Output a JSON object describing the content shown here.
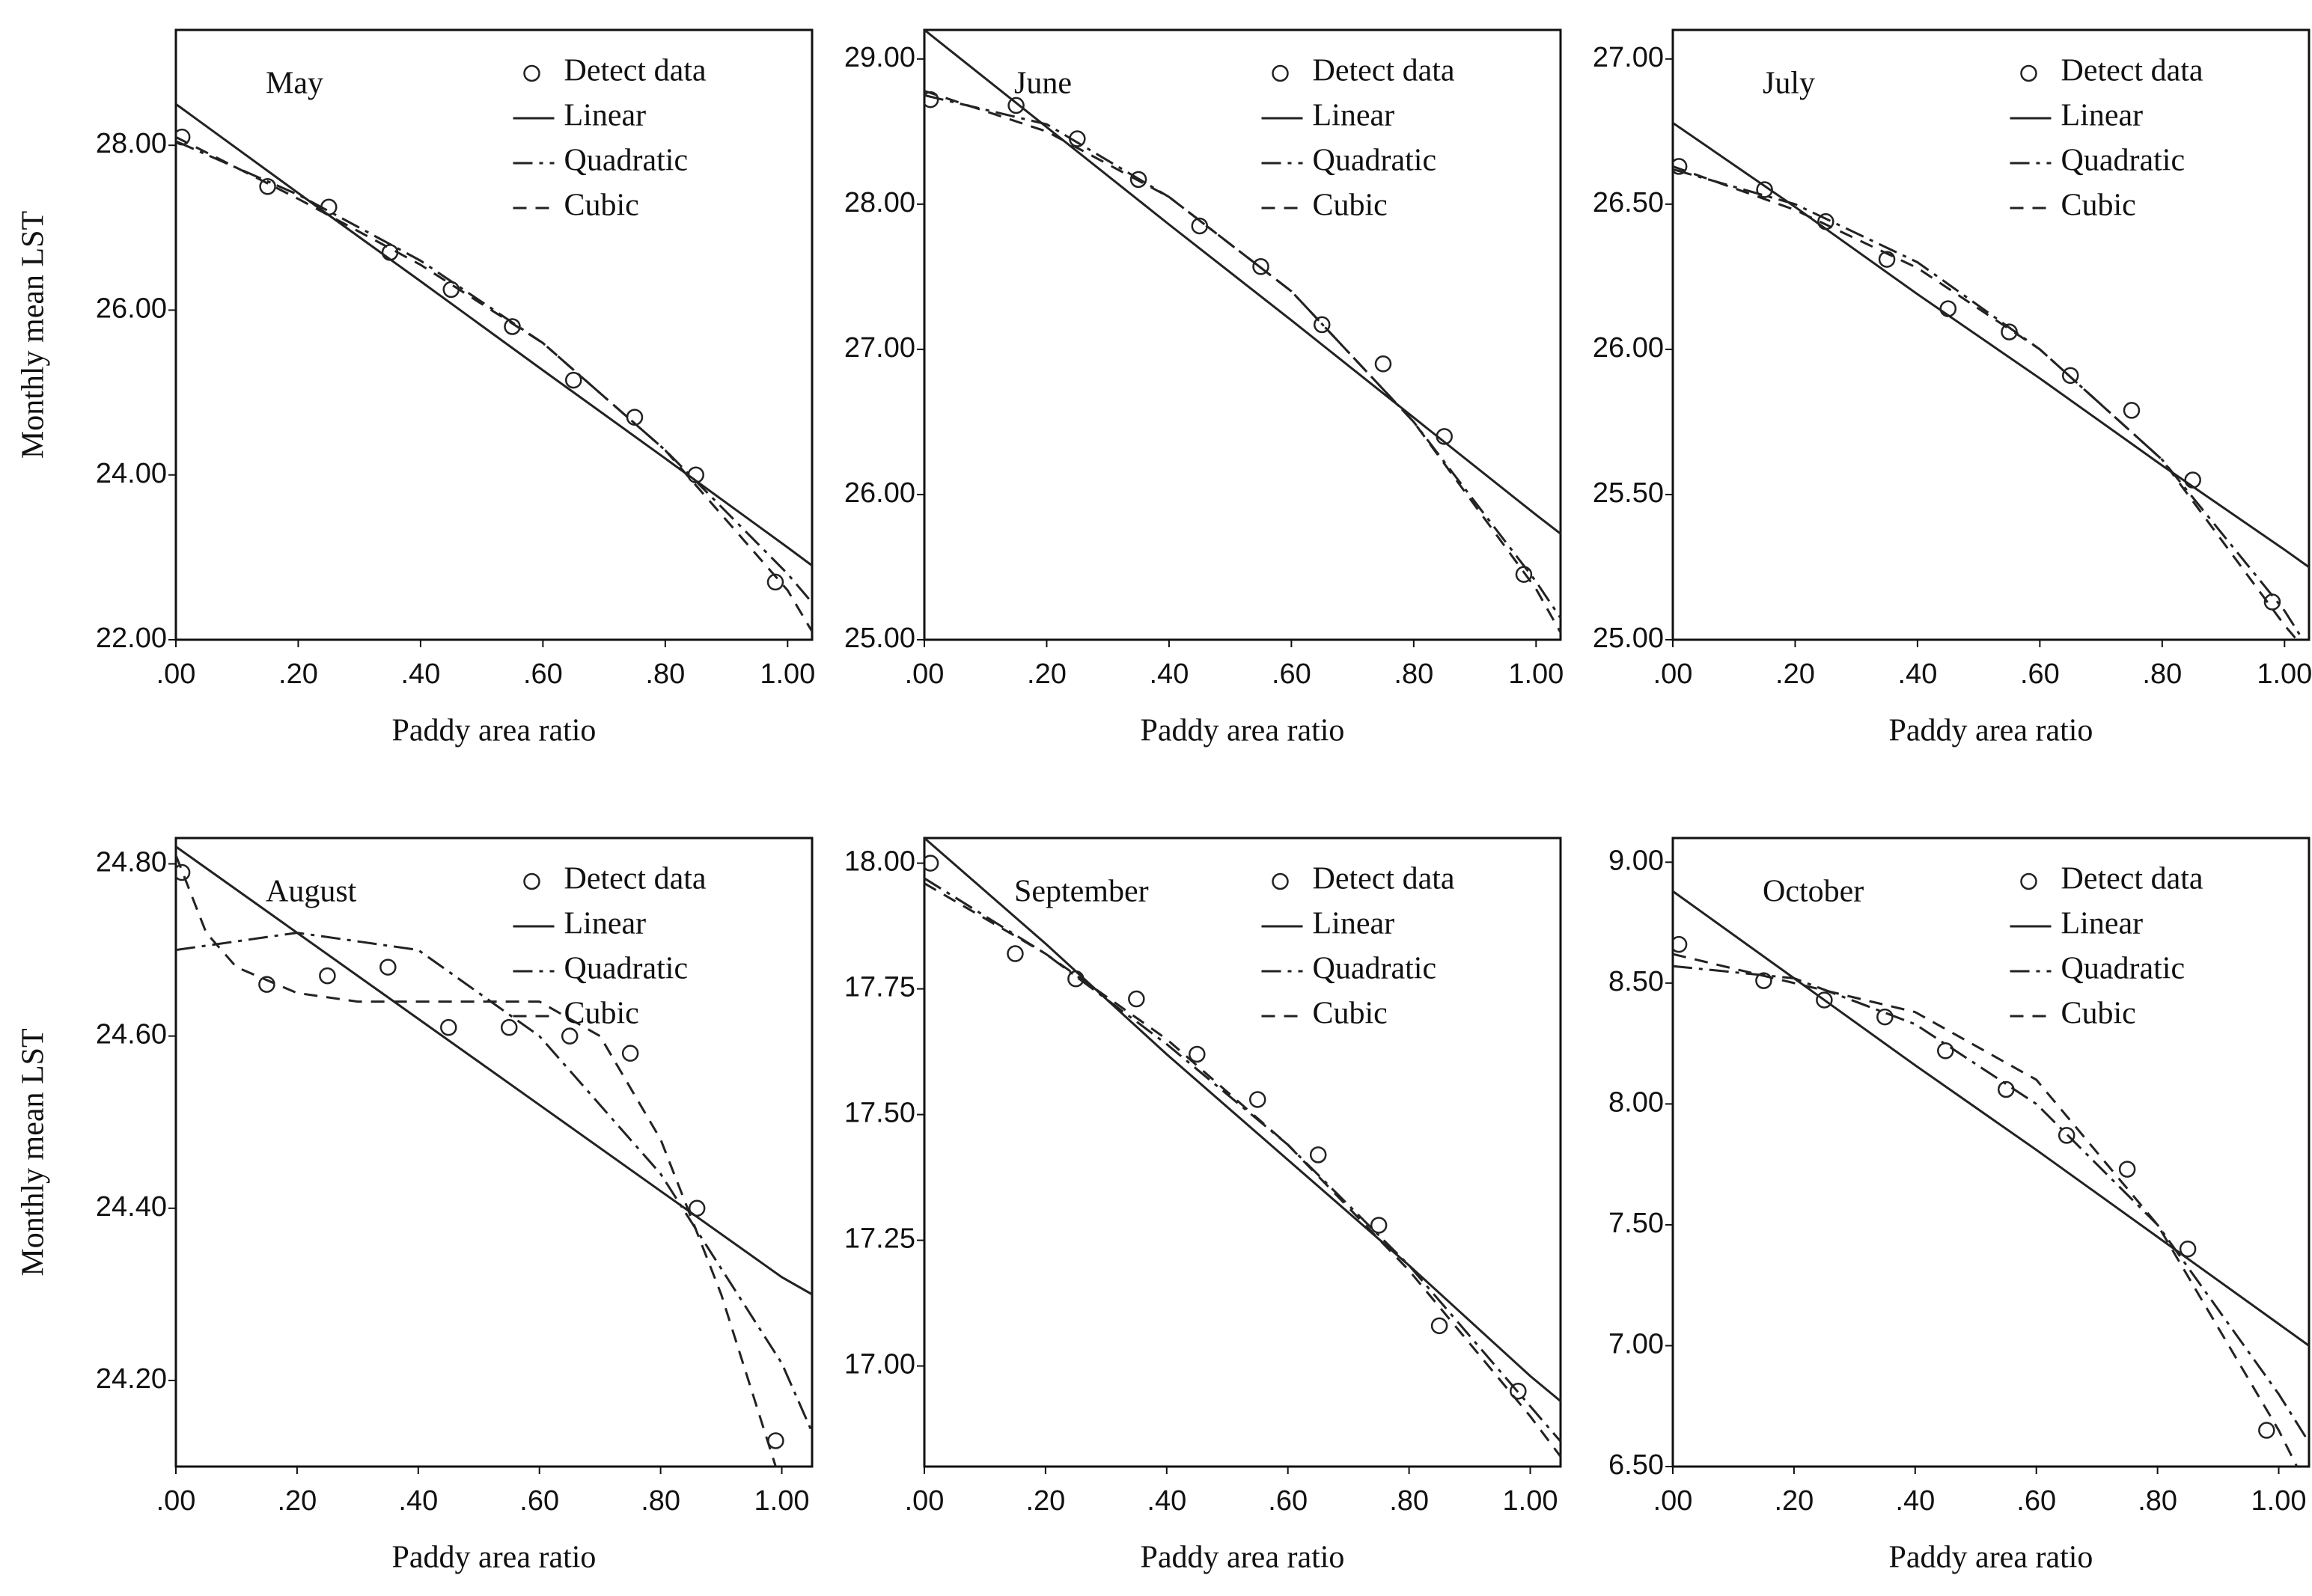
{
  "chart_data": [
    {
      "type": "scatter",
      "title": "May",
      "xlabel": "Paddy area ratio",
      "ylabel": "Monthly mean LST",
      "xlim": [
        0,
        1.04
      ],
      "ylim": [
        22,
        29.4
      ],
      "xticks": [
        {
          "value": 0,
          "label": ".00"
        },
        {
          "value": 0.2,
          "label": ".20"
        },
        {
          "value": 0.4,
          "label": ".40"
        },
        {
          "value": 0.6,
          "label": ".60"
        },
        {
          "value": 0.8,
          "label": ".80"
        },
        {
          "value": 1,
          "label": "1.00"
        }
      ],
      "yticks": [
        {
          "value": 22,
          "label": "22.00"
        },
        {
          "value": 24,
          "label": "24.00"
        },
        {
          "value": 26,
          "label": "26.00"
        },
        {
          "value": 28,
          "label": "28.00"
        }
      ],
      "series": [
        {
          "name": "Detect data",
          "color": "#222222",
          "x": [
            0.01,
            0.15,
            0.25,
            0.35,
            0.45,
            0.55,
            0.65,
            0.75,
            0.85,
            0.98
          ],
          "values": [
            28.1,
            27.5,
            27.25,
            26.7,
            26.25,
            25.8,
            25.15,
            24.7,
            24.0,
            22.7
          ]
        },
        {
          "name": "Linear",
          "color": "#222222",
          "x": [
            0,
            0.2,
            0.4,
            0.6,
            0.8,
            1.0,
            1.04
          ],
          "values": [
            28.5,
            27.42,
            26.35,
            25.27,
            24.2,
            23.12,
            22.9
          ]
        },
        {
          "name": "Quadratic",
          "color": "#222222",
          "x": [
            0,
            0.2,
            0.4,
            0.6,
            0.8,
            1.0,
            1.04
          ],
          "values": [
            28.05,
            27.4,
            26.6,
            25.6,
            24.3,
            22.8,
            22.45
          ]
        },
        {
          "name": "Cubic",
          "color": "#222222",
          "x": [
            0,
            0.2,
            0.4,
            0.6,
            0.8,
            1.0,
            1.04
          ],
          "values": [
            28.1,
            27.35,
            26.55,
            25.6,
            24.3,
            22.6,
            22.1
          ]
        }
      ]
    },
    {
      "type": "scatter",
      "title": "June",
      "xlabel": "Paddy area ratio",
      "xlim": [
        0,
        1.04
      ],
      "ylim": [
        25,
        29.2
      ],
      "xticks": [
        {
          "value": 0,
          "label": ".00"
        },
        {
          "value": 0.2,
          "label": ".20"
        },
        {
          "value": 0.4,
          "label": ".40"
        },
        {
          "value": 0.6,
          "label": ".60"
        },
        {
          "value": 0.8,
          "label": ".80"
        },
        {
          "value": 1,
          "label": "1.00"
        }
      ],
      "yticks": [
        {
          "value": 25,
          "label": "25.00"
        },
        {
          "value": 26,
          "label": "26.00"
        },
        {
          "value": 27,
          "label": "27.00"
        },
        {
          "value": 28,
          "label": "28.00"
        },
        {
          "value": 29,
          "label": "29.00"
        }
      ],
      "series": [
        {
          "name": "Detect data",
          "color": "#222222",
          "x": [
            0.01,
            0.15,
            0.25,
            0.35,
            0.45,
            0.55,
            0.65,
            0.75,
            0.85,
            0.98
          ],
          "values": [
            28.72,
            28.68,
            28.45,
            28.17,
            27.85,
            27.57,
            27.17,
            26.9,
            26.4,
            25.45
          ]
        },
        {
          "name": "Linear",
          "color": "#222222",
          "x": [
            0,
            0.2,
            0.4,
            0.6,
            0.8,
            1.0,
            1.04
          ],
          "values": [
            29.2,
            28.53,
            27.86,
            27.2,
            26.53,
            25.86,
            25.73
          ]
        },
        {
          "name": "Quadratic",
          "color": "#222222",
          "x": [
            0,
            0.2,
            0.4,
            0.6,
            0.8,
            1.0,
            1.04
          ],
          "values": [
            28.75,
            28.55,
            28.05,
            27.4,
            26.5,
            25.4,
            25.15
          ]
        },
        {
          "name": "Cubic",
          "color": "#222222",
          "x": [
            0,
            0.2,
            0.4,
            0.6,
            0.8,
            1.0,
            1.04
          ],
          "values": [
            28.78,
            28.5,
            28.05,
            27.4,
            26.5,
            25.35,
            25.05
          ]
        }
      ]
    },
    {
      "type": "scatter",
      "title": "July",
      "xlabel": "Paddy area ratio",
      "xlim": [
        0,
        1.04
      ],
      "ylim": [
        25,
        27.1
      ],
      "xticks": [
        {
          "value": 0,
          "label": ".00"
        },
        {
          "value": 0.2,
          "label": ".20"
        },
        {
          "value": 0.4,
          "label": ".40"
        },
        {
          "value": 0.6,
          "label": ".60"
        },
        {
          "value": 0.8,
          "label": ".80"
        },
        {
          "value": 1,
          "label": "1.00"
        }
      ],
      "yticks": [
        {
          "value": 25,
          "label": "25.00"
        },
        {
          "value": 25.5,
          "label": "25.50"
        },
        {
          "value": 26,
          "label": "26.00"
        },
        {
          "value": 26.5,
          "label": "26.50"
        },
        {
          "value": 27,
          "label": "27.00"
        }
      ],
      "series": [
        {
          "name": "Detect data",
          "color": "#222222",
          "x": [
            0.01,
            0.15,
            0.25,
            0.35,
            0.45,
            0.55,
            0.65,
            0.75,
            0.85,
            0.98
          ],
          "values": [
            26.63,
            26.55,
            26.44,
            26.31,
            26.14,
            26.06,
            25.91,
            25.79,
            25.55,
            25.13
          ]
        },
        {
          "name": "Linear",
          "color": "#222222",
          "x": [
            0,
            0.2,
            0.4,
            0.6,
            0.8,
            1.0,
            1.04
          ],
          "values": [
            26.78,
            26.49,
            26.19,
            25.9,
            25.6,
            25.31,
            25.25
          ]
        },
        {
          "name": "Quadratic",
          "color": "#222222",
          "x": [
            0,
            0.2,
            0.4,
            0.6,
            0.8,
            1.0,
            1.03
          ],
          "values": [
            26.62,
            26.5,
            26.3,
            26.0,
            25.62,
            25.1,
            25.0
          ]
        },
        {
          "name": "Cubic",
          "color": "#222222",
          "x": [
            0,
            0.2,
            0.4,
            0.6,
            0.8,
            1.0,
            1.02
          ],
          "values": [
            26.63,
            26.48,
            26.28,
            26.0,
            25.62,
            25.05,
            25.0
          ]
        }
      ]
    },
    {
      "type": "scatter",
      "title": "August",
      "xlabel": "Paddy area ratio",
      "ylabel": "Monthly mean LST",
      "xlim": [
        0,
        1.05
      ],
      "ylim": [
        24.1,
        24.83
      ],
      "xticks": [
        {
          "value": 0,
          "label": ".00"
        },
        {
          "value": 0.2,
          "label": ".20"
        },
        {
          "value": 0.4,
          "label": ".40"
        },
        {
          "value": 0.6,
          "label": ".60"
        },
        {
          "value": 0.8,
          "label": ".80"
        },
        {
          "value": 1,
          "label": "1.00"
        }
      ],
      "yticks": [
        {
          "value": 24.2,
          "label": "24.20"
        },
        {
          "value": 24.4,
          "label": "24.40"
        },
        {
          "value": 24.6,
          "label": "24.60"
        },
        {
          "value": 24.8,
          "label": "24.80"
        }
      ],
      "series": [
        {
          "name": "Detect data",
          "color": "#222222",
          "x": [
            0.01,
            0.15,
            0.25,
            0.35,
            0.45,
            0.55,
            0.65,
            0.75,
            0.86,
            0.99
          ],
          "values": [
            24.79,
            24.66,
            24.67,
            24.68,
            24.61,
            24.61,
            24.6,
            24.58,
            24.4,
            24.13
          ]
        },
        {
          "name": "Linear",
          "color": "#222222",
          "x": [
            0,
            0.2,
            0.4,
            0.6,
            0.8,
            1.0,
            1.05
          ],
          "values": [
            24.82,
            24.72,
            24.62,
            24.52,
            24.42,
            24.32,
            24.3
          ]
        },
        {
          "name": "Quadratic",
          "color": "#222222",
          "x": [
            0,
            0.2,
            0.4,
            0.6,
            0.8,
            1.0,
            1.05
          ],
          "values": [
            24.7,
            24.72,
            24.7,
            24.6,
            24.44,
            24.22,
            24.14
          ]
        },
        {
          "name": "Cubic",
          "color": "#222222",
          "x": [
            0,
            0.05,
            0.1,
            0.2,
            0.3,
            0.4,
            0.5,
            0.6,
            0.7,
            0.8,
            0.9,
            0.99
          ],
          "values": [
            24.81,
            24.72,
            24.68,
            24.65,
            24.64,
            24.64,
            24.64,
            24.64,
            24.6,
            24.48,
            24.3,
            24.1
          ]
        }
      ]
    },
    {
      "type": "scatter",
      "title": "September",
      "xlabel": "Paddy area ratio",
      "xlim": [
        0,
        1.05
      ],
      "ylim": [
        16.8,
        18.05
      ],
      "xticks": [
        {
          "value": 0,
          "label": ".00"
        },
        {
          "value": 0.2,
          "label": ".20"
        },
        {
          "value": 0.4,
          "label": ".40"
        },
        {
          "value": 0.6,
          "label": ".60"
        },
        {
          "value": 0.8,
          "label": ".80"
        },
        {
          "value": 1,
          "label": "1.00"
        }
      ],
      "yticks": [
        {
          "value": 17,
          "label": "17.00"
        },
        {
          "value": 17.25,
          "label": "17.25"
        },
        {
          "value": 17.5,
          "label": "17.50"
        },
        {
          "value": 17.75,
          "label": "17.75"
        },
        {
          "value": 18,
          "label": "18.00"
        }
      ],
      "series": [
        {
          "name": "Detect data",
          "color": "#222222",
          "x": [
            0.01,
            0.15,
            0.25,
            0.35,
            0.45,
            0.55,
            0.65,
            0.75,
            0.85,
            0.98
          ],
          "values": [
            18.0,
            17.82,
            17.77,
            17.73,
            17.62,
            17.53,
            17.42,
            17.28,
            17.08,
            16.95
          ]
        },
        {
          "name": "Linear",
          "color": "#222222",
          "x": [
            0,
            0.2,
            0.4,
            0.6,
            0.8,
            1.0,
            1.05
          ],
          "values": [
            18.05,
            17.84,
            17.62,
            17.41,
            17.2,
            16.98,
            16.93
          ]
        },
        {
          "name": "Quadratic",
          "color": "#222222",
          "x": [
            0,
            0.2,
            0.4,
            0.6,
            0.8,
            1.0,
            1.05
          ],
          "values": [
            17.97,
            17.82,
            17.64,
            17.44,
            17.2,
            16.92,
            16.85
          ]
        },
        {
          "name": "Cubic",
          "color": "#222222",
          "x": [
            0,
            0.2,
            0.4,
            0.6,
            0.8,
            1.0,
            1.05
          ],
          "values": [
            17.96,
            17.82,
            17.65,
            17.44,
            17.19,
            16.9,
            16.82
          ]
        }
      ]
    },
    {
      "type": "scatter",
      "title": "October",
      "xlabel": "Paddy area ratio",
      "xlim": [
        0,
        1.05
      ],
      "ylim": [
        6.5,
        9.1
      ],
      "xticks": [
        {
          "value": 0,
          "label": ".00"
        },
        {
          "value": 0.2,
          "label": ".20"
        },
        {
          "value": 0.4,
          "label": ".40"
        },
        {
          "value": 0.6,
          "label": ".60"
        },
        {
          "value": 0.8,
          "label": ".80"
        },
        {
          "value": 1,
          "label": "1.00"
        }
      ],
      "yticks": [
        {
          "value": 6.5,
          "label": "6.50"
        },
        {
          "value": 7,
          "label": "7.00"
        },
        {
          "value": 7.5,
          "label": "7.50"
        },
        {
          "value": 8,
          "label": "8.00"
        },
        {
          "value": 8.5,
          "label": "8.50"
        },
        {
          "value": 9,
          "label": "9.00"
        }
      ],
      "series": [
        {
          "name": "Detect data",
          "color": "#222222",
          "x": [
            0.01,
            0.15,
            0.25,
            0.35,
            0.45,
            0.55,
            0.65,
            0.75,
            0.85,
            0.98
          ],
          "values": [
            8.66,
            8.51,
            8.43,
            8.36,
            8.22,
            8.06,
            7.87,
            7.73,
            7.4,
            6.65
          ]
        },
        {
          "name": "Linear",
          "color": "#222222",
          "x": [
            0,
            0.2,
            0.4,
            0.6,
            0.8,
            1.0,
            1.05
          ],
          "values": [
            8.88,
            8.52,
            8.16,
            7.81,
            7.45,
            7.09,
            7.0
          ]
        },
        {
          "name": "Quadratic",
          "color": "#222222",
          "x": [
            0,
            0.2,
            0.4,
            0.6,
            0.8,
            1.0,
            1.05
          ],
          "values": [
            8.57,
            8.52,
            8.33,
            8.0,
            7.5,
            6.8,
            6.6
          ]
        },
        {
          "name": "Cubic",
          "color": "#222222",
          "x": [
            0,
            0.2,
            0.4,
            0.6,
            0.8,
            1.0,
            1.03
          ],
          "values": [
            8.62,
            8.5,
            8.38,
            8.1,
            7.5,
            6.65,
            6.5
          ]
        }
      ]
    }
  ]
}
